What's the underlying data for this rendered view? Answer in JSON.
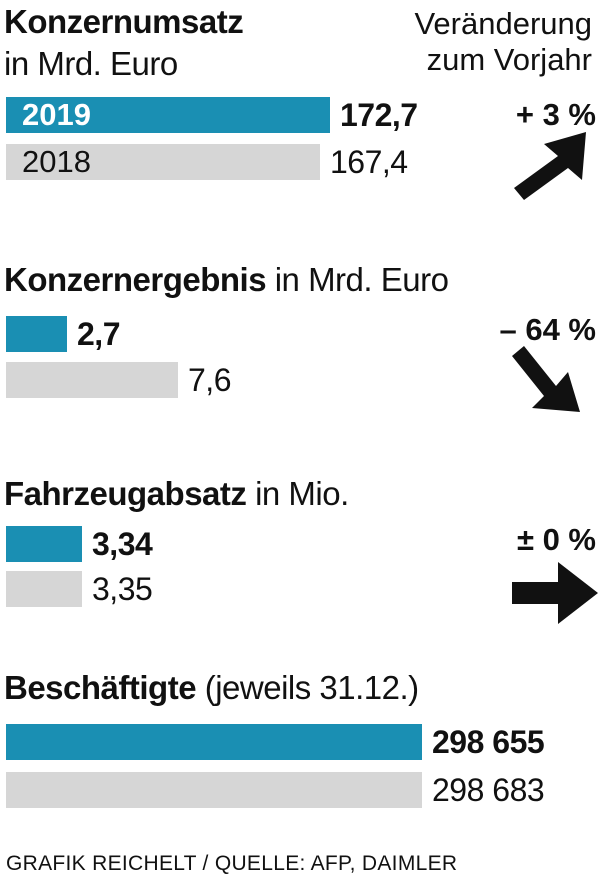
{
  "change_header": {
    "line1": "Veränderung",
    "line2": "zum Vorjahr"
  },
  "colors": {
    "current": "#1a8fb3",
    "previous": "#d6d6d6",
    "arrow": "#111111"
  },
  "chart_data": [
    {
      "type": "bar",
      "title": "Konzernumsatz",
      "unit": "in Mrd. Euro",
      "series": [
        {
          "name": "2019",
          "values": [
            172.7
          ],
          "label": "172,7"
        },
        {
          "name": "2018",
          "values": [
            167.4
          ],
          "label": "167,4"
        }
      ],
      "change": {
        "label": "+ 3 %",
        "direction": "up",
        "arrow_icon": "arrow-up-right-icon"
      },
      "xlim": [
        0,
        172.7
      ]
    },
    {
      "type": "bar",
      "title": "Konzernergebnis",
      "unit": "in Mrd. Euro",
      "series": [
        {
          "values": [
            2.7
          ],
          "label": "2,7"
        },
        {
          "values": [
            7.6
          ],
          "label": "7,6"
        }
      ],
      "change": {
        "label": "– 64 %",
        "direction": "down",
        "arrow_icon": "arrow-down-right-icon"
      },
      "xlim": [
        0,
        172.7
      ]
    },
    {
      "type": "bar",
      "title": "Fahrzeugabsatz",
      "unit": "in Mio.",
      "series": [
        {
          "values": [
            3.34
          ],
          "label": "3,34"
        },
        {
          "values": [
            3.35
          ],
          "label": "3,35"
        }
      ],
      "change": {
        "label": "± 0 %",
        "direction": "flat",
        "arrow_icon": "arrow-right-icon"
      },
      "xlim": [
        0,
        172.7
      ]
    },
    {
      "type": "bar",
      "title": "Beschäftigte",
      "unit": "(jeweils 31.12.)",
      "series": [
        {
          "values": [
            298655
          ],
          "label": "298 655"
        },
        {
          "values": [
            298683
          ],
          "label": "298 683"
        }
      ],
      "xlim": [
        0,
        298683
      ]
    }
  ],
  "footer": "GRAFIK REICHELT / QUELLE: AFP, DAIMLER"
}
